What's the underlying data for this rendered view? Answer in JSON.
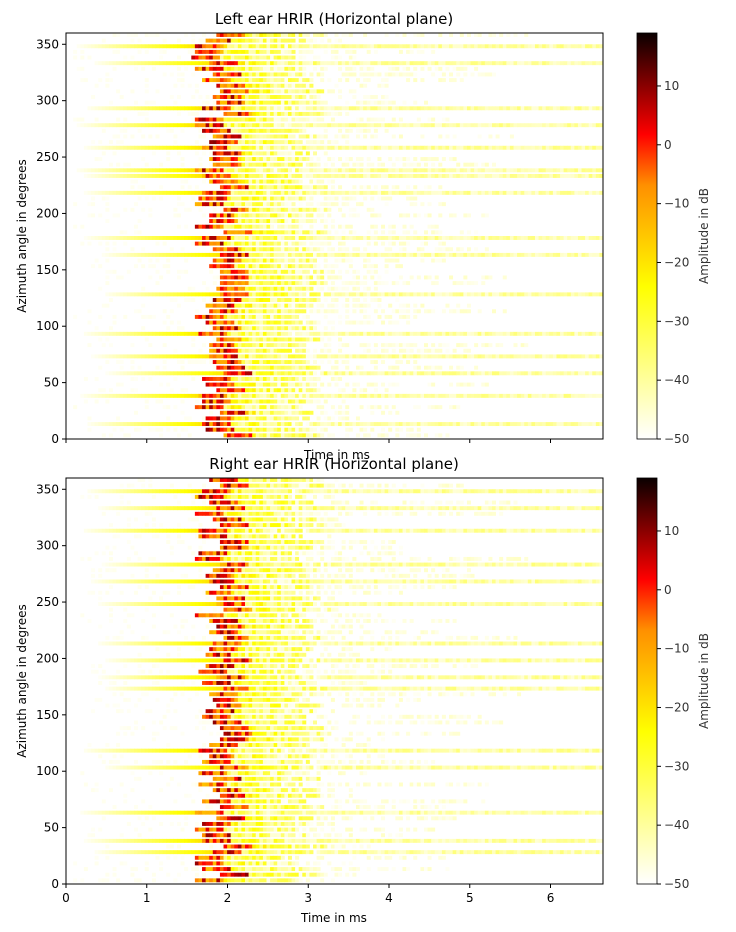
{
  "chart_data": [
    {
      "type": "heatmap",
      "title": "Left ear HRIR (Horizontal plane)",
      "xlabel": "Time in ms",
      "ylabel": "Azimuth angle in degrees",
      "xlim": [
        0,
        6.65
      ],
      "ylim": [
        0,
        360
      ],
      "xticks": [
        0,
        1,
        2,
        3,
        4,
        5,
        6
      ],
      "xtick_labels_shown": false,
      "yticks": [
        0,
        50,
        100,
        150,
        200,
        250,
        300,
        350
      ],
      "colorbar": {
        "label": "Amplitude in dB",
        "colormap": "hot_r",
        "range": [
          -50,
          19
        ],
        "ticks": [
          -50,
          -40,
          -30,
          -20,
          -10,
          0,
          10
        ],
        "tick_labels": [
          "−50",
          "−40",
          "−30",
          "−20",
          "−10",
          "0",
          "10"
        ]
      },
      "onset_ms_range": [
        1.55,
        1.95
      ],
      "strong_azimuths": [
        10,
        35,
        55,
        70,
        90,
        125,
        160,
        175,
        215,
        230,
        235,
        255,
        275,
        290,
        330,
        345
      ]
    },
    {
      "type": "heatmap",
      "title": "Right ear HRIR (Horizontal plane)",
      "xlabel": "Time in ms",
      "ylabel": "Azimuth angle in degrees",
      "xlim": [
        0,
        6.65
      ],
      "ylim": [
        0,
        360
      ],
      "xticks": [
        0,
        1,
        2,
        3,
        4,
        5,
        6
      ],
      "xtick_labels_shown": true,
      "yticks": [
        0,
        50,
        100,
        150,
        200,
        250,
        300,
        350
      ],
      "colorbar": {
        "label": "Amplitude in dB",
        "colormap": "hot_r",
        "range": [
          -50,
          19
        ],
        "ticks": [
          -50,
          -40,
          -30,
          -20,
          -10,
          0,
          10
        ],
        "tick_labels": [
          "−50",
          "−40",
          "−30",
          "−20",
          "−10",
          "0",
          "10"
        ]
      },
      "onset_ms_range": [
        1.55,
        1.95
      ],
      "strong_azimuths": [
        25,
        35,
        60,
        100,
        115,
        170,
        180,
        195,
        210,
        245,
        265,
        280,
        310,
        330,
        345
      ]
    }
  ]
}
